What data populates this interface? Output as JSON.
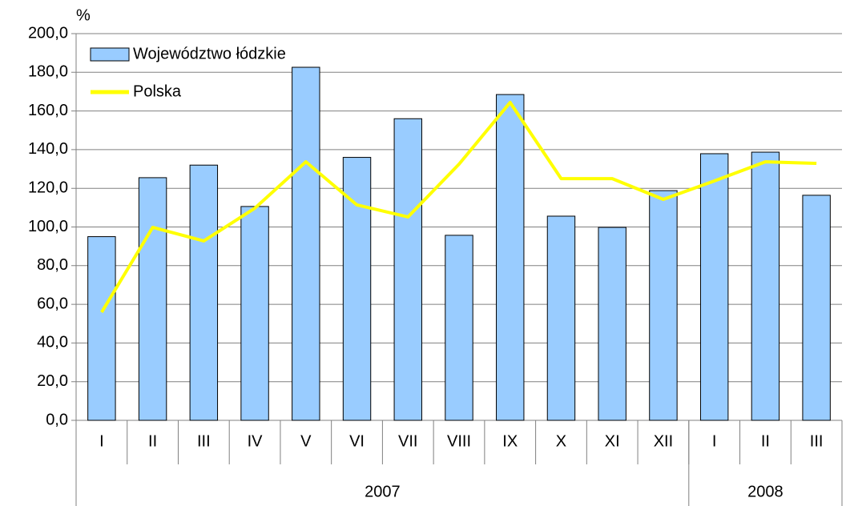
{
  "chart_data": {
    "type": "bar_line",
    "ylabel": "%",
    "categories": [
      "I",
      "II",
      "III",
      "IV",
      "V",
      "VI",
      "VII",
      "VIII",
      "IX",
      "X",
      "XI",
      "XII",
      "I",
      "II",
      "III"
    ],
    "groups": [
      {
        "label": "2007",
        "count": 12
      },
      {
        "label": "2008",
        "count": 3
      }
    ],
    "series": [
      {
        "name": "Województwo łódzkie",
        "type": "bar",
        "color": "#99ccff",
        "values": [
          95,
          125.5,
          132,
          110.6,
          182.6,
          136,
          156,
          95.7,
          168.5,
          105.6,
          99.8,
          118.8,
          137.9,
          138.7,
          116.4
        ]
      },
      {
        "name": "Polska",
        "type": "line",
        "color": "#ffff00",
        "values": [
          55.9,
          99.8,
          92.8,
          109.7,
          133.7,
          111.4,
          105.2,
          132.5,
          164.4,
          125,
          125,
          114.3,
          123.8,
          133.7,
          132.9
        ]
      }
    ],
    "ylim": [
      0,
      200
    ],
    "yticks": [
      {
        "value": 0,
        "label": "0,0"
      },
      {
        "value": 20,
        "label": "20,0"
      },
      {
        "value": 40,
        "label": "40,0"
      },
      {
        "value": 60,
        "label": "60,0"
      },
      {
        "value": 80,
        "label": "80,0"
      },
      {
        "value": 100,
        "label": "100,0"
      },
      {
        "value": 120,
        "label": "120,0"
      },
      {
        "value": 140,
        "label": "140,0"
      },
      {
        "value": 160,
        "label": "160,0"
      },
      {
        "value": 180,
        "label": "180,0"
      },
      {
        "value": 200,
        "label": "200,0"
      }
    ],
    "grid": true,
    "legend": "top-left"
  }
}
